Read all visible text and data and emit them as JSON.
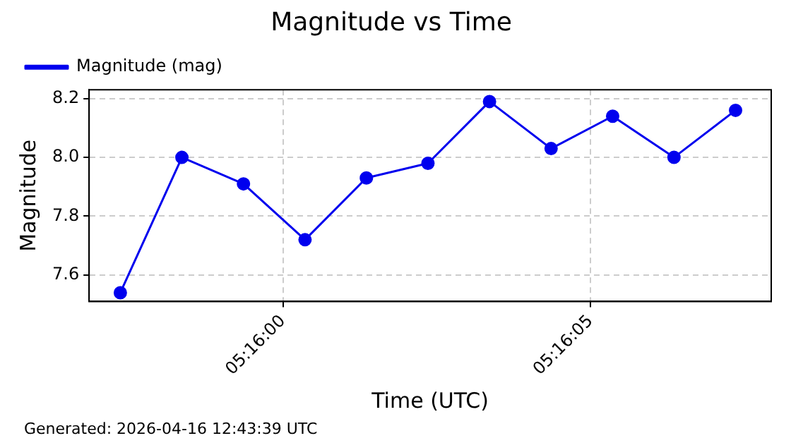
{
  "chart_data": {
    "type": "line",
    "title": "Magnitude vs Time",
    "xlabel": "Time (UTC)",
    "ylabel": "Magnitude",
    "x": [
      5.265933,
      5.266211,
      5.266489,
      5.266767,
      5.267044,
      5.267322,
      5.2676,
      5.267878,
      5.268156,
      5.268433,
      5.268711
    ],
    "series": [
      {
        "name": "Magnitude (mag)",
        "color": "#0000ee",
        "values": [
          7.54,
          8.0,
          7.91,
          7.72,
          7.93,
          7.98,
          8.19,
          8.03,
          8.14,
          8.0,
          8.16
        ]
      }
    ],
    "xlim": [
      5.265792,
      5.268872
    ],
    "xticks": [
      {
        "value": 5.266667,
        "label": "05:16:00"
      },
      {
        "value": 5.268056,
        "label": "05:16:05"
      }
    ],
    "ylim": [
      7.51,
      8.23
    ],
    "yticks": [
      7.6,
      7.8,
      {
        "value": 8,
        "label": "8.0"
      },
      8.2
    ],
    "grid": true,
    "legend": "top left",
    "marker": "circle",
    "line_style": "solid",
    "annotations": [
      "Generated: 2026-04-16 12:43:39 UTC"
    ]
  }
}
